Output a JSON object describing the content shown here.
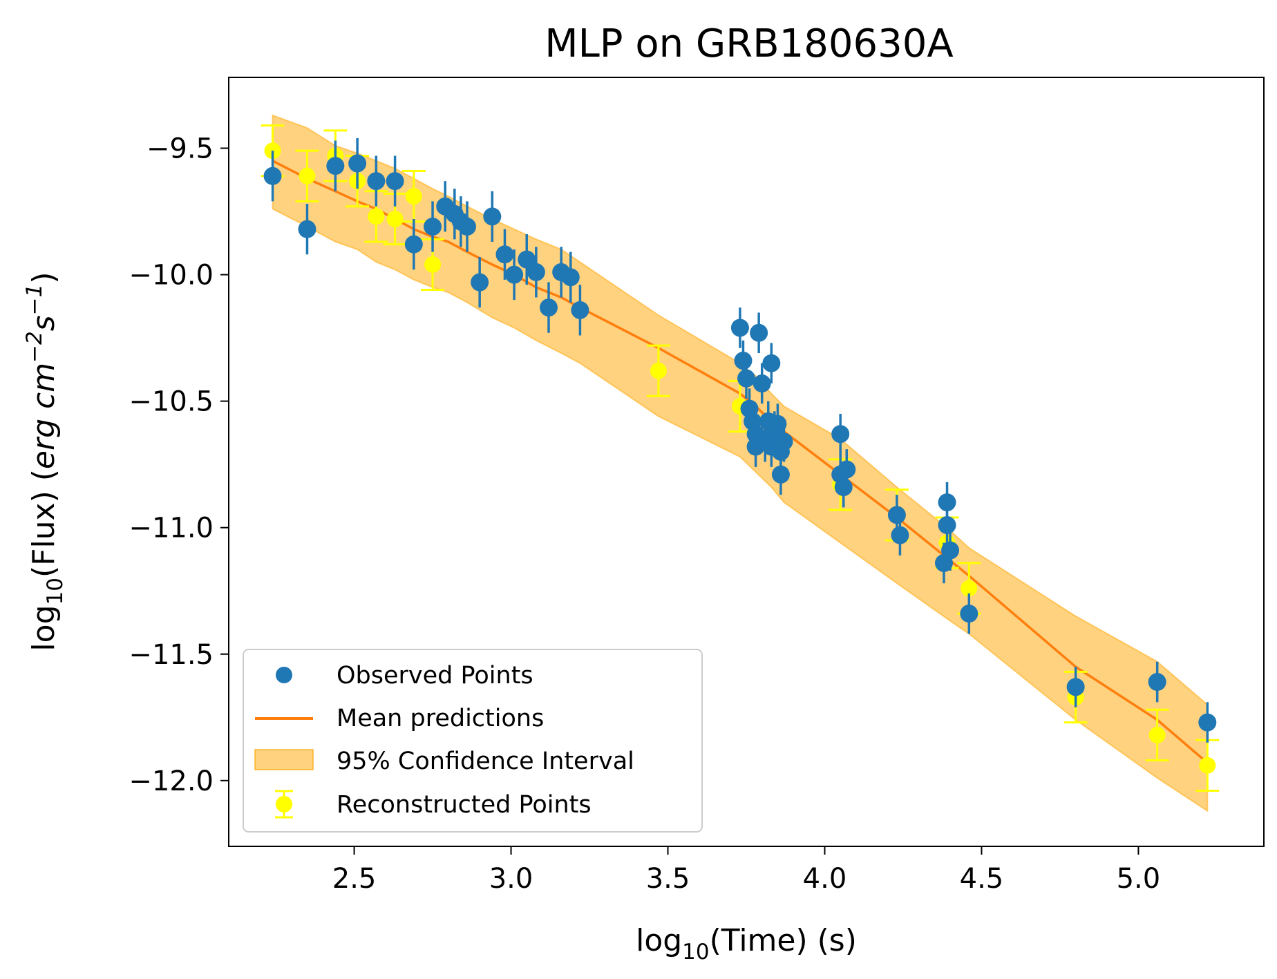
{
  "chart_data": {
    "type": "scatter",
    "title": "MLP on GRB180630A",
    "xlabel": {
      "prefix": "log",
      "sub": "10",
      "suffix": "(Time) (s)"
    },
    "ylabel": {
      "prefix": "log",
      "sub": "10",
      "suffix": "(Flux) (",
      "unit_erg": "erg cm",
      "unit_exp1": "−2",
      "unit_s": "s",
      "unit_exp2": "−1",
      "close": ")"
    },
    "xlim": [
      2.1,
      5.4
    ],
    "ylim": [
      -12.26,
      -9.22
    ],
    "xticks": [
      {
        "value": 2.5,
        "label": "2.5"
      },
      {
        "value": 3.0,
        "label": "3.0"
      },
      {
        "value": 3.5,
        "label": "3.5"
      },
      {
        "value": 4.0,
        "label": "4.0"
      },
      {
        "value": 4.5,
        "label": "4.5"
      },
      {
        "value": 5.0,
        "label": "5.0"
      }
    ],
    "yticks": [
      {
        "value": -9.5,
        "label": "−9.5"
      },
      {
        "value": -10.0,
        "label": "−10.0"
      },
      {
        "value": -10.5,
        "label": "−10.5"
      },
      {
        "value": -11.0,
        "label": "−11.0"
      },
      {
        "value": -11.5,
        "label": "−11.5"
      },
      {
        "value": -12.0,
        "label": "−12.0"
      }
    ],
    "legend": {
      "placement": "lower-left",
      "entries": [
        {
          "key": "observed",
          "label": "Observed Points"
        },
        {
          "key": "mean",
          "label": "Mean predictions"
        },
        {
          "key": "ci",
          "label": "95% Confidence Interval"
        },
        {
          "key": "reconstructed",
          "label": "Reconstructed Points"
        }
      ]
    },
    "colors": {
      "observed": "#1f77b4",
      "mean": "#ff7f0e",
      "ci_fill": "#ffa500",
      "reconstructed": "#ffff00"
    },
    "series": [
      {
        "name": "Observed Points",
        "type": "errorbar",
        "points": [
          [
            2.24,
            -9.61,
            0.1
          ],
          [
            2.35,
            -9.82,
            0.1
          ],
          [
            2.44,
            -9.57,
            0.1
          ],
          [
            2.51,
            -9.56,
            0.1
          ],
          [
            2.57,
            -9.63,
            0.1
          ],
          [
            2.63,
            -9.63,
            0.1
          ],
          [
            2.69,
            -9.88,
            0.1
          ],
          [
            2.75,
            -9.81,
            0.1
          ],
          [
            2.79,
            -9.73,
            0.1
          ],
          [
            2.82,
            -9.76,
            0.1
          ],
          [
            2.84,
            -9.79,
            0.1
          ],
          [
            2.86,
            -9.81,
            0.1
          ],
          [
            2.9,
            -10.03,
            0.1
          ],
          [
            2.94,
            -9.77,
            0.1
          ],
          [
            2.98,
            -9.92,
            0.1
          ],
          [
            3.01,
            -10.0,
            0.1
          ],
          [
            3.05,
            -9.94,
            0.1
          ],
          [
            3.08,
            -9.99,
            0.1
          ],
          [
            3.12,
            -10.13,
            0.1
          ],
          [
            3.16,
            -9.99,
            0.1
          ],
          [
            3.19,
            -10.01,
            0.1
          ],
          [
            3.22,
            -10.14,
            0.1
          ],
          [
            3.73,
            -10.21,
            0.08
          ],
          [
            3.74,
            -10.34,
            0.08
          ],
          [
            3.75,
            -10.41,
            0.08
          ],
          [
            3.76,
            -10.53,
            0.08
          ],
          [
            3.77,
            -10.58,
            0.08
          ],
          [
            3.78,
            -10.63,
            0.08
          ],
          [
            3.78,
            -10.68,
            0.08
          ],
          [
            3.79,
            -10.23,
            0.08
          ],
          [
            3.8,
            -10.43,
            0.08
          ],
          [
            3.81,
            -10.66,
            0.08
          ],
          [
            3.82,
            -10.58,
            0.08
          ],
          [
            3.83,
            -10.35,
            0.08
          ],
          [
            3.83,
            -10.68,
            0.08
          ],
          [
            3.84,
            -10.62,
            0.08
          ],
          [
            3.85,
            -10.59,
            0.08
          ],
          [
            3.86,
            -10.79,
            0.08
          ],
          [
            3.86,
            -10.7,
            0.08
          ],
          [
            3.87,
            -10.66,
            0.08
          ],
          [
            4.05,
            -10.63,
            0.08
          ],
          [
            4.05,
            -10.79,
            0.08
          ],
          [
            4.06,
            -10.84,
            0.08
          ],
          [
            4.07,
            -10.77,
            0.08
          ],
          [
            4.23,
            -10.95,
            0.08
          ],
          [
            4.24,
            -11.03,
            0.08
          ],
          [
            4.38,
            -11.14,
            0.08
          ],
          [
            4.39,
            -10.99,
            0.08
          ],
          [
            4.39,
            -10.9,
            0.08
          ],
          [
            4.4,
            -11.09,
            0.08
          ],
          [
            4.46,
            -11.34,
            0.08
          ],
          [
            4.8,
            -11.63,
            0.08
          ],
          [
            5.06,
            -11.61,
            0.08
          ],
          [
            5.22,
            -11.77,
            0.08
          ]
        ]
      },
      {
        "name": "Reconstructed Points",
        "type": "errorbar",
        "points": [
          [
            2.24,
            -9.51,
            0.1
          ],
          [
            2.35,
            -9.61,
            0.1
          ],
          [
            2.44,
            -9.53,
            0.1
          ],
          [
            2.51,
            -9.63,
            0.1
          ],
          [
            2.57,
            -9.77,
            0.1
          ],
          [
            2.63,
            -9.78,
            0.1
          ],
          [
            2.69,
            -9.69,
            0.1
          ],
          [
            2.75,
            -9.96,
            0.1
          ],
          [
            3.47,
            -10.38,
            0.1
          ],
          [
            3.73,
            -10.52,
            0.1
          ],
          [
            4.05,
            -10.83,
            0.1
          ],
          [
            4.23,
            -10.95,
            0.1
          ],
          [
            4.39,
            -11.06,
            0.1
          ],
          [
            4.46,
            -11.24,
            0.1
          ],
          [
            4.8,
            -11.67,
            0.1
          ],
          [
            5.06,
            -11.82,
            0.1
          ],
          [
            5.22,
            -11.94,
            0.1
          ]
        ]
      },
      {
        "name": "Mean predictions",
        "type": "line",
        "x": [
          2.24,
          2.35,
          2.44,
          2.51,
          2.57,
          2.63,
          2.69,
          2.75,
          2.8,
          2.86,
          2.94,
          3.01,
          3.08,
          3.16,
          3.22,
          3.47,
          3.73,
          3.78,
          3.83,
          3.87,
          4.05,
          4.23,
          4.39,
          4.46,
          4.8,
          5.06,
          5.22
        ],
        "y": [
          -9.55,
          -9.62,
          -9.67,
          -9.71,
          -9.74,
          -9.78,
          -9.82,
          -9.85,
          -9.87,
          -9.91,
          -9.96,
          -10.0,
          -10.05,
          -10.09,
          -10.13,
          -10.29,
          -10.47,
          -10.52,
          -10.58,
          -10.62,
          -10.79,
          -10.96,
          -11.12,
          -11.19,
          -11.55,
          -11.76,
          -11.93
        ]
      },
      {
        "name": "95% Confidence Interval",
        "type": "band",
        "x": [
          2.24,
          2.35,
          2.44,
          2.51,
          2.57,
          2.63,
          2.69,
          2.75,
          2.8,
          2.86,
          2.94,
          3.01,
          3.08,
          3.16,
          3.22,
          3.47,
          3.73,
          3.78,
          3.83,
          3.87,
          4.05,
          4.23,
          4.39,
          4.46,
          4.8,
          5.06,
          5.22
        ],
        "lower": [
          -9.74,
          -9.81,
          -9.87,
          -9.9,
          -9.95,
          -9.98,
          -10.02,
          -10.05,
          -10.07,
          -10.11,
          -10.17,
          -10.21,
          -10.26,
          -10.31,
          -10.35,
          -10.56,
          -10.72,
          -10.78,
          -10.84,
          -10.9,
          -11.06,
          -11.22,
          -11.36,
          -11.42,
          -11.76,
          -11.99,
          -12.12
        ],
        "upper": [
          -9.37,
          -9.42,
          -9.49,
          -9.52,
          -9.55,
          -9.58,
          -9.62,
          -9.66,
          -9.69,
          -9.73,
          -9.78,
          -9.82,
          -9.86,
          -9.9,
          -9.95,
          -10.16,
          -10.35,
          -10.4,
          -10.47,
          -10.52,
          -10.65,
          -10.84,
          -11.0,
          -11.08,
          -11.35,
          -11.53,
          -11.7
        ]
      }
    ]
  }
}
